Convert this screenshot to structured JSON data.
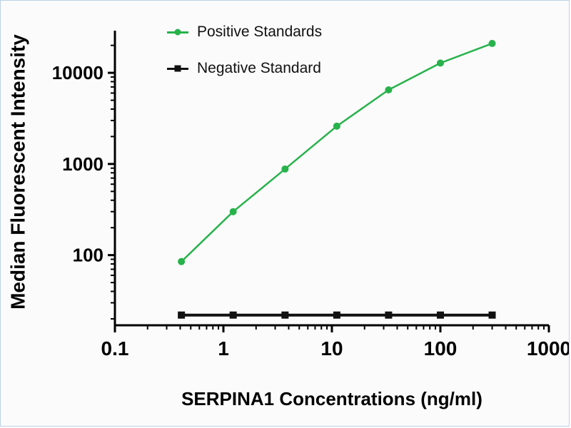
{
  "chart_data": {
    "type": "line",
    "title": "",
    "xlabel": "SERPINA1 Concentrations (ng/ml)",
    "ylabel": "Median Fluorescent Intensity",
    "x_scale": "log",
    "y_scale": "log",
    "xlim": [
      0.1,
      1000
    ],
    "ylim": [
      17,
      29000
    ],
    "grid": false,
    "legend_position": "top-left-inside",
    "x_ticks": [
      {
        "value": 0.1,
        "label": "0.1"
      },
      {
        "value": 1,
        "label": "1"
      },
      {
        "value": 10,
        "label": "10"
      },
      {
        "value": 100,
        "label": "100"
      },
      {
        "value": 1000,
        "label": "1000"
      }
    ],
    "y_ticks": [
      {
        "value": 100,
        "label": "100"
      },
      {
        "value": 1000,
        "label": "1000"
      },
      {
        "value": 10000,
        "label": "10000"
      }
    ],
    "series": [
      {
        "name": "Positive Standards",
        "color": "#27b24b",
        "marker": "circle",
        "x": [
          0.41,
          1.23,
          3.7,
          11.1,
          33.3,
          100,
          300
        ],
        "y": [
          85,
          300,
          880,
          2600,
          6500,
          12800,
          21000
        ]
      },
      {
        "name": "Negative Standard",
        "color": "#111111",
        "marker": "square",
        "x": [
          0.41,
          1.23,
          3.7,
          11.1,
          33.3,
          100,
          300
        ],
        "y": [
          22,
          22,
          22,
          22,
          22,
          22,
          22
        ]
      }
    ],
    "axis_color": "#000000",
    "background_color": "#fbfbfb",
    "border_color": "#bcd0e6"
  }
}
